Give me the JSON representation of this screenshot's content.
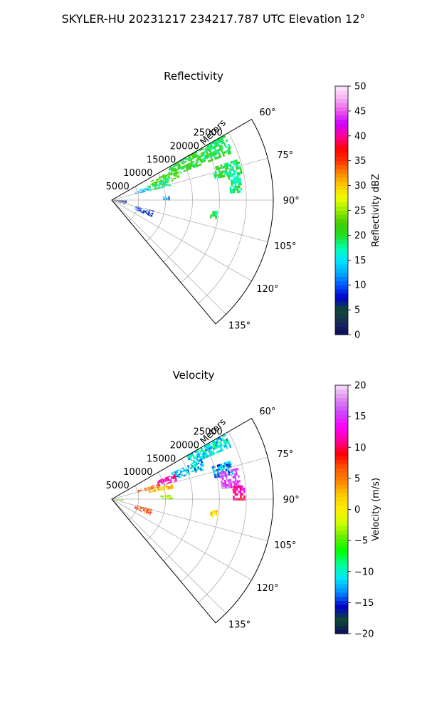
{
  "figure": {
    "suptitle": "SKYLER-HU  20231217  234217.787 UTC Elevation 12°"
  },
  "colors": {
    "grid": "#b0b0b0",
    "spine": "#000000"
  },
  "chart_data": [
    {
      "type": "polar-sector",
      "title": "Reflectivity",
      "radial_label": "Meters",
      "radial_ticks": [
        "5000",
        "10000",
        "15000",
        "20000",
        "25000"
      ],
      "radial_range": [
        0,
        30000
      ],
      "theta_ticks": [
        "60°",
        "75°",
        "90°",
        "105°",
        "120°",
        "135°"
      ],
      "theta_range_deg": [
        60,
        140
      ],
      "colorbar": {
        "label": "Reflectivity dBZ",
        "range": [
          0,
          50
        ],
        "ticks": [
          "0",
          "5",
          "10",
          "15",
          "20",
          "25",
          "30",
          "35",
          "40",
          "45",
          "50"
        ],
        "stops": [
          "#0a0a60",
          "#1a2a5a",
          "#0f4a30",
          "#0000cc",
          "#0055ff",
          "#00aaff",
          "#00e5ff",
          "#00ffb0",
          "#22dd22",
          "#44cc00",
          "#99ee00",
          "#eeff00",
          "#ffcc00",
          "#ff8800",
          "#ff3300",
          "#ff0000",
          "#ff0099",
          "#cc00ff",
          "#ee55ee",
          "#f4b0f4",
          "#fde8fd"
        ]
      },
      "echo_regions": [
        {
          "az": [
            60,
            68
          ],
          "r": [
            12000,
            24000
          ],
          "value": 20
        },
        {
          "az": [
            64,
            72
          ],
          "r": [
            8000,
            13000
          ],
          "value": 22
        },
        {
          "az": [
            68,
            76
          ],
          "r": [
            7000,
            11000
          ],
          "value": 18
        },
        {
          "az": [
            70,
            76
          ],
          "r": [
            4500,
            7000
          ],
          "value": 13
        },
        {
          "az": [
            72,
            78
          ],
          "r": [
            19500,
            24500
          ],
          "value": 19
        },
        {
          "az": [
            78,
            86
          ],
          "r": [
            22000,
            24000
          ],
          "value": 18
        },
        {
          "az": [
            86,
            90
          ],
          "r": [
            9500,
            10500
          ],
          "value": 12
        },
        {
          "az": [
            92,
            110
          ],
          "r": [
            500,
            2500
          ],
          "value": 6
        },
        {
          "az": [
            104,
            112
          ],
          "r": [
            4500,
            8000
          ],
          "value": 8
        },
        {
          "az": [
            96,
            100
          ],
          "r": [
            18500,
            19500
          ],
          "value": 19
        }
      ]
    },
    {
      "type": "polar-sector",
      "title": "Velocity",
      "radial_label": "Meters",
      "radial_ticks": [
        "5000",
        "10000",
        "15000",
        "20000",
        "25000"
      ],
      "radial_range": [
        0,
        30000
      ],
      "theta_ticks": [
        "60°",
        "75°",
        "90°",
        "105°",
        "120°",
        "135°"
      ],
      "theta_range_deg": [
        60,
        140
      ],
      "colorbar": {
        "label": "Velocity (m/s)",
        "range": [
          -20,
          20
        ],
        "ticks": [
          "−20",
          "−15",
          "−10",
          "−5",
          "0",
          "5",
          "10",
          "15",
          "20"
        ],
        "stops": [
          "#0a0a60",
          "#0f4a30",
          "#0000cc",
          "#0088ff",
          "#00e5ff",
          "#00ff99",
          "#00ff00",
          "#66ee00",
          "#ccff00",
          "#ffee00",
          "#ffcc00",
          "#ff8800",
          "#ff5500",
          "#ff0000",
          "#ff0099",
          "#ff00ff",
          "#cc44ff",
          "#dd88ee",
          "#f8dcf8"
        ]
      },
      "echo_regions": [
        {
          "az": [
            60,
            66
          ],
          "r": [
            16000,
            24000
          ],
          "value": -11
        },
        {
          "az": [
            66,
            72
          ],
          "r": [
            12000,
            18000
          ],
          "value": -12
        },
        {
          "az": [
            68,
            74
          ],
          "r": [
            9000,
            12500
          ],
          "value": 12
        },
        {
          "az": [
            71,
            76
          ],
          "r": [
            5000,
            9000
          ],
          "value": 6
        },
        {
          "az": [
            76,
            80
          ],
          "r": [
            7000,
            11500
          ],
          "value": 2
        },
        {
          "az": [
            72,
            78
          ],
          "r": [
            19500,
            23000
          ],
          "value": -13
        },
        {
          "az": [
            76,
            84
          ],
          "r": [
            20500,
            24000
          ],
          "value": 16
        },
        {
          "az": [
            84,
            90
          ],
          "r": [
            22500,
            24500
          ],
          "value": 11
        },
        {
          "az": [
            86,
            90
          ],
          "r": [
            9000,
            11000
          ],
          "value": -3
        },
        {
          "az": [
            88,
            100
          ],
          "r": [
            500,
            2000
          ],
          "value": -4
        },
        {
          "az": [
            104,
            112
          ],
          "r": [
            4500,
            7500
          ],
          "value": 7
        },
        {
          "az": [
            96,
            100
          ],
          "r": [
            18500,
            19500
          ],
          "value": 1
        }
      ]
    }
  ]
}
